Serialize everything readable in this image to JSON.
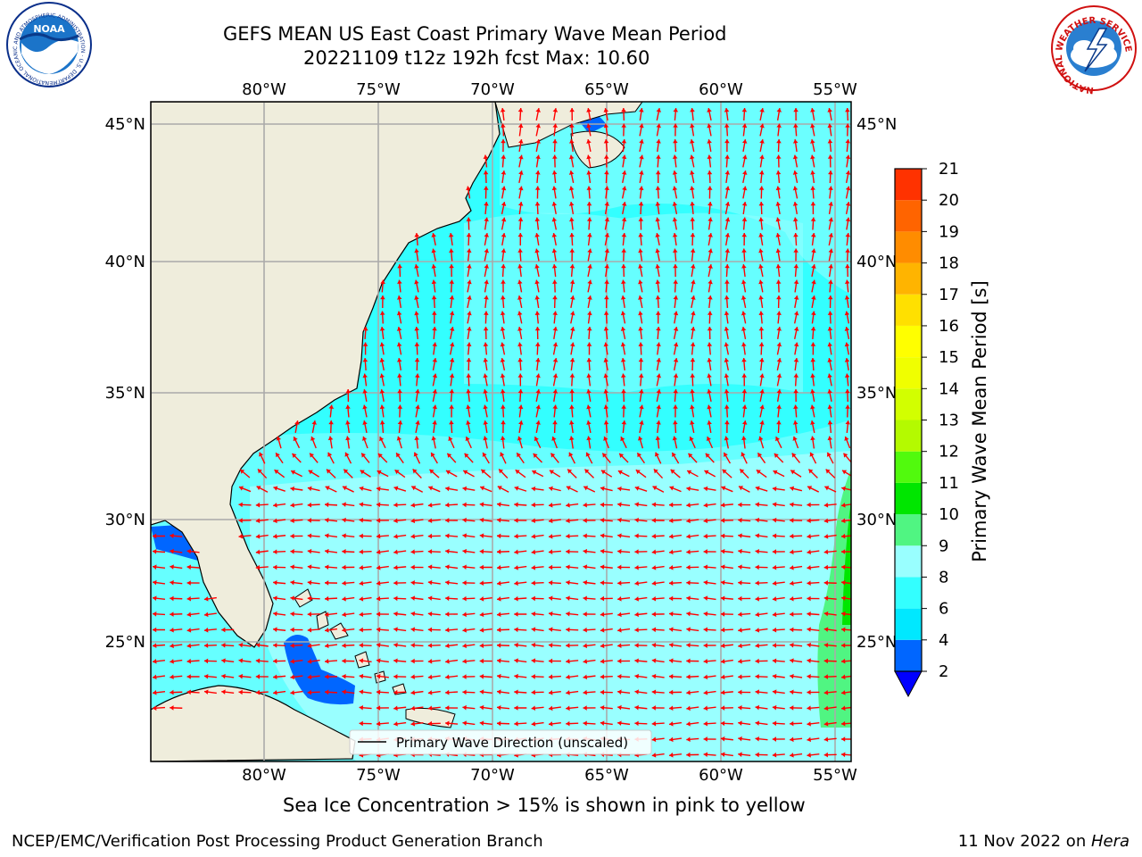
{
  "title": {
    "line1": "GEFS MEAN US East Coast Primary Wave Mean Period",
    "line2": "20221109 t12z 192h fcst   Max: 10.60"
  },
  "map": {
    "lon_ticks": [
      "80°W",
      "75°W",
      "70°W",
      "65°W",
      "60°W",
      "55°W"
    ],
    "lat_ticks": [
      "45°N",
      "40°N",
      "35°N",
      "30°N",
      "25°N"
    ],
    "legend_label": "Primary Wave Direction (unscaled)",
    "land_color": "#efeddc",
    "ocean_base_color": "#33ffff",
    "arrow_color": "#ff0000"
  },
  "colorbar": {
    "label": "Primary Wave Mean Period [s]",
    "ticks": [
      "2",
      "4",
      "6",
      "8",
      "9",
      "10",
      "11",
      "12",
      "13",
      "14",
      "15",
      "16",
      "17",
      "18",
      "19",
      "20",
      "21"
    ],
    "colors": [
      "#0066ff",
      "#00e8ff",
      "#33ffff",
      "#99ffff",
      "#50f582",
      "#00e600",
      "#51fa0d",
      "#b4fa00",
      "#d2ff00",
      "#f0ff00",
      "#ffff00",
      "#ffe000",
      "#ffb400",
      "#ff8c00",
      "#ff6400",
      "#ff3200"
    ],
    "under_color": "#0000ff"
  },
  "subtitle": "Sea Ice Concentration > 15% is shown in pink to yellow",
  "footer": {
    "left": "NCEP/EMC/Verification Post Processing Product Generation Branch",
    "date": "11 Nov 2022 on ",
    "machine": "Hera"
  },
  "logos": {
    "noaa_text": "NOAA",
    "noaa_ring": "NATIONAL OCEANIC AND ATMOSPHERIC ADMINISTRATION · U.S. DEPARTMENT OF COMMERCE",
    "nws_ring": "NATIONAL WEATHER SERVICE"
  }
}
